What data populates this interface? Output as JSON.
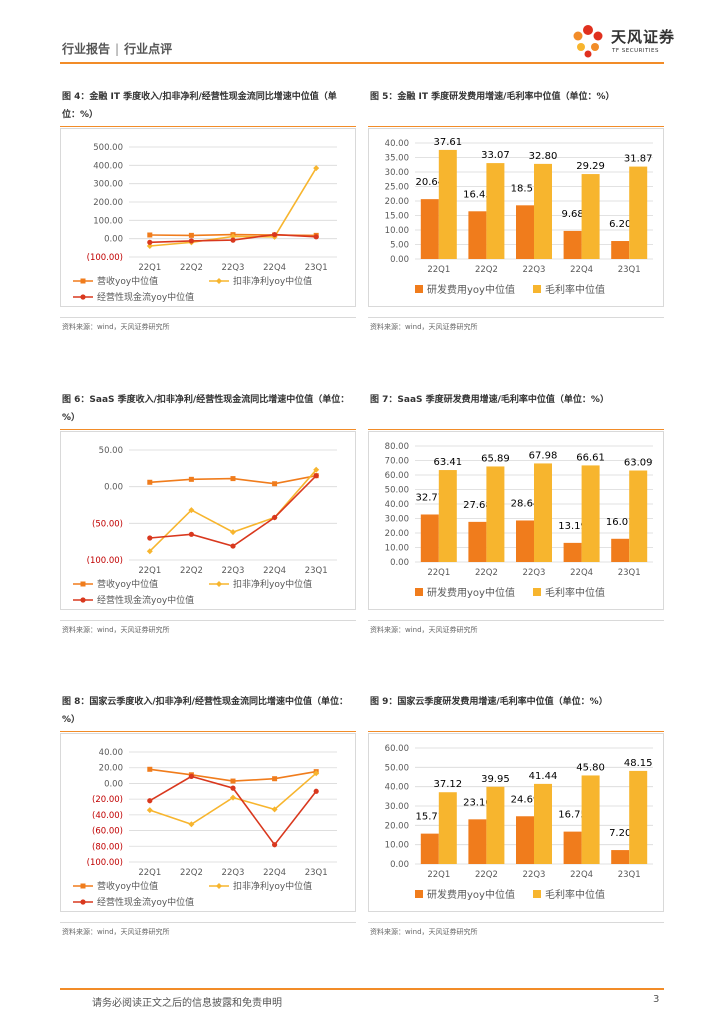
{
  "header": {
    "section1": "行业报告",
    "section2": "行业点评"
  },
  "logo": {
    "name": "天风证券",
    "sub": "TF SECURITIES"
  },
  "footer": {
    "disclaimer": "请务必阅读正文之后的信息披露和免责申明",
    "page": "3"
  },
  "colors": {
    "orange": "#f07c1c",
    "yellow": "#f7b52e",
    "red": "#d9381e",
    "accent": "#f28c28"
  },
  "figures": [
    {
      "title": "图 4：金融 IT 季度收入/扣非净利/经营性现金流同比增速中位值（单位：%）",
      "source": "资料来源：wind，天风证券研究所",
      "chart_data": {
        "type": "line",
        "categories": [
          "22Q1",
          "22Q2",
          "22Q3",
          "22Q4",
          "23Q1"
        ],
        "yticks": [
          "500.00",
          "400.00",
          "300.00",
          "200.00",
          "100.00",
          "0.00",
          "(100.00)"
        ],
        "ylim": [
          -100,
          500
        ],
        "series": [
          {
            "name": "营收yoy中位值",
            "values": [
              20,
              18,
              22,
              20,
              18
            ]
          },
          {
            "name": "扣非净利yoy中位值",
            "values": [
              -40,
              -20,
              12,
              10,
              385
            ]
          },
          {
            "name": "经营性现金流yoy中位值",
            "values": [
              -20,
              -12,
              -8,
              22,
              10
            ]
          }
        ],
        "legend": "bottom"
      }
    },
    {
      "title": "图 5：金融 IT 季度研发费用增速/毛利率中位值（单位：%）",
      "source": "资料来源：wind，天风证券研究所",
      "chart_data": {
        "type": "bar",
        "categories": [
          "22Q1",
          "22Q2",
          "22Q3",
          "22Q4",
          "23Q1"
        ],
        "yticks": [
          "40.00",
          "35.00",
          "30.00",
          "25.00",
          "20.00",
          "15.00",
          "10.00",
          "5.00",
          "0.00"
        ],
        "ylim": [
          0,
          40
        ],
        "series": [
          {
            "name": "研发费用yoy中位值",
            "values": [
              20.64,
              16.45,
              18.51,
              9.68,
              6.2
            ],
            "labels": [
              "20.64",
              "16.45",
              "18.51",
              "9.68",
              "6.20"
            ]
          },
          {
            "name": "毛利率中位值",
            "values": [
              37.61,
              33.07,
              32.8,
              29.29,
              31.87
            ],
            "labels": [
              "37.61",
              "33.07",
              "32.80",
              "29.29",
              "31.87"
            ]
          }
        ],
        "legend": "bottom"
      }
    },
    {
      "title": "图 6：SaaS 季度收入/扣非净利/经营性现金流同比增速中位值（单位：%）",
      "source": "资料来源：wind，天风证券研究所",
      "chart_data": {
        "type": "line",
        "categories": [
          "22Q1",
          "22Q2",
          "22Q3",
          "22Q4",
          "23Q1"
        ],
        "yticks": [
          "50.00",
          "0.00",
          "(50.00)",
          "(100.00)"
        ],
        "ylim": [
          -100,
          50
        ],
        "series": [
          {
            "name": "营收yoy中位值",
            "values": [
              6,
              10,
              11,
              4,
              15
            ]
          },
          {
            "name": "扣非净利yoy中位值",
            "values": [
              -88,
              -32,
              -62,
              -42,
              23
            ]
          },
          {
            "name": "经营性现金流yoy中位值",
            "values": [
              -70,
              -65,
              -81,
              -42,
              15
            ]
          }
        ],
        "legend": "bottom"
      }
    },
    {
      "title": "图 7：SaaS 季度研发费用增速/毛利率中位值（单位：%）",
      "source": "资料来源：wind，天风证券研究所",
      "chart_data": {
        "type": "bar",
        "categories": [
          "22Q1",
          "22Q2",
          "22Q3",
          "22Q4",
          "23Q1"
        ],
        "yticks": [
          "80.00",
          "70.00",
          "60.00",
          "50.00",
          "40.00",
          "30.00",
          "20.00",
          "10.00",
          "0.00"
        ],
        "ylim": [
          0,
          80
        ],
        "series": [
          {
            "name": "研发费用yoy中位值",
            "values": [
              32.77,
              27.68,
              28.64,
              13.19,
              16.01
            ],
            "labels": [
              "32.77",
              "27.68",
              "28.64",
              "13.19",
              "16.01"
            ]
          },
          {
            "name": "毛利率中位值",
            "values": [
              63.41,
              65.89,
              67.98,
              66.61,
              63.09
            ],
            "labels": [
              "63.41",
              "65.89",
              "67.98",
              "66.61",
              "63.09"
            ]
          }
        ],
        "legend": "bottom"
      }
    },
    {
      "title": "图 8：国家云季度收入/扣非净利/经营性现金流同比增速中位值（单位：%）",
      "source": "资料来源：wind，天风证券研究所",
      "chart_data": {
        "type": "line",
        "categories": [
          "22Q1",
          "22Q2",
          "22Q3",
          "22Q4",
          "23Q1"
        ],
        "yticks": [
          "40.00",
          "20.00",
          "0.00",
          "(20.00)",
          "(40.00)",
          "(60.00)",
          "(80.00)",
          "(100.00)"
        ],
        "ylim": [
          -100,
          40
        ],
        "series": [
          {
            "name": "营收yoy中位值",
            "values": [
              18,
              11,
              3,
              6,
              15
            ]
          },
          {
            "name": "扣非净利yoy中位值",
            "values": [
              -34,
              -52,
              -18,
              -33,
              13
            ]
          },
          {
            "name": "经营性现金流yoy中位值",
            "values": [
              -22,
              9,
              -6,
              -78,
              -10
            ]
          }
        ],
        "legend": "bottom"
      }
    },
    {
      "title": "图 9：国家云季度研发费用增速/毛利率中位值（单位：%）",
      "source": "资料来源：wind，天风证券研究所",
      "chart_data": {
        "type": "bar",
        "categories": [
          "22Q1",
          "22Q2",
          "22Q3",
          "22Q4",
          "23Q1"
        ],
        "yticks": [
          "60.00",
          "50.00",
          "40.00",
          "30.00",
          "20.00",
          "10.00",
          "0.00"
        ],
        "ylim": [
          0,
          60
        ],
        "series": [
          {
            "name": "研发费用yoy中位值",
            "values": [
              15.71,
              23.1,
              24.69,
              16.75,
              7.2
            ],
            "labels": [
              "15.71",
              "23.10",
              "24.69",
              "16.75",
              "7.20"
            ]
          },
          {
            "name": "毛利率中位值",
            "values": [
              37.12,
              39.95,
              41.44,
              45.8,
              48.15
            ],
            "labels": [
              "37.12",
              "39.95",
              "41.44",
              "45.80",
              "48.15"
            ]
          }
        ],
        "legend": "bottom"
      }
    }
  ]
}
